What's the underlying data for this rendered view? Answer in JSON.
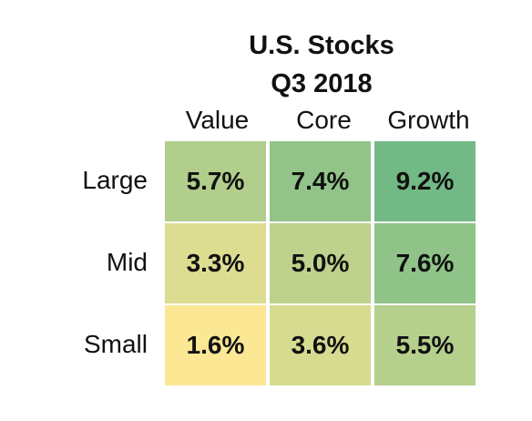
{
  "chart_data": {
    "type": "heatmap",
    "title": "U.S. Stocks",
    "subtitle": "Q3 2018",
    "columns": [
      "Value",
      "Core",
      "Growth"
    ],
    "rows": [
      "Large",
      "Mid",
      "Small"
    ],
    "values": [
      [
        5.7,
        7.4,
        9.2
      ],
      [
        3.3,
        5.0,
        7.6
      ],
      [
        1.6,
        3.6,
        5.5
      ]
    ],
    "labels": [
      [
        "5.7%",
        "7.4%",
        "9.2%"
      ],
      [
        "3.3%",
        "5.0%",
        "7.6%"
      ],
      [
        "1.6%",
        "3.6%",
        "5.5%"
      ]
    ],
    "color_scale": {
      "low_color": "#fbe794",
      "high_color": "#72b985"
    }
  }
}
